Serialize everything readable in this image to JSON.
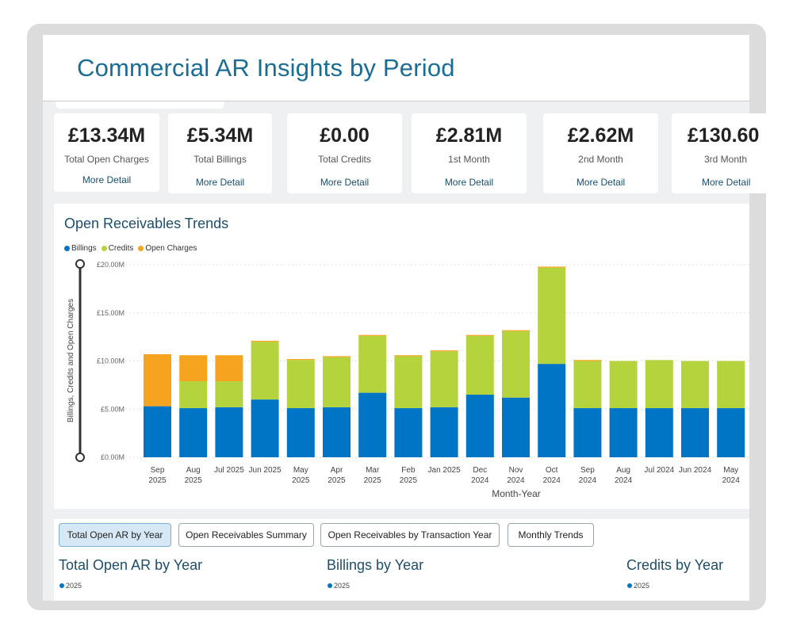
{
  "header": {
    "title": "Commercial AR Insights by Period"
  },
  "kpis": [
    {
      "value": "£13.34M",
      "label": "Total Open Charges",
      "more": "More Detail"
    },
    {
      "value": "£5.34M",
      "label": "Total Billings",
      "more": "More Detail"
    },
    {
      "value": "£0.00",
      "label": "Total Credits",
      "more": "More Detail"
    },
    {
      "value": "£2.81M",
      "label": "1st Month",
      "more": "More Detail"
    },
    {
      "value": "£2.62M",
      "label": "2nd Month",
      "more": "More Detail"
    },
    {
      "value": "£130.60",
      "label": "3rd Month",
      "more": "More Detail"
    }
  ],
  "chart": {
    "title": "Open Receivables Trends",
    "legend": [
      {
        "name": "Billings",
        "color": "#0074c5"
      },
      {
        "name": "Credits",
        "color": "#b5d33d"
      },
      {
        "name": "Open Charges",
        "color": "#f6a31f"
      }
    ]
  },
  "chart_data": {
    "type": "bar",
    "stacked": true,
    "title": "Open Receivables Trends",
    "xlabel": "Month-Year",
    "ylabel": "Billings, Credits and Open Charges",
    "ylim": [
      0,
      20
    ],
    "yticks": [
      "£0.00M",
      "£5.00M",
      "£10.00M",
      "£15.00M",
      "£20.00M"
    ],
    "categories": [
      "Sep 2025",
      "Aug 2025",
      "Jul 2025",
      "Jun 2025",
      "May 2025",
      "Apr 2025",
      "Mar 2025",
      "Feb 2025",
      "Jan 2025",
      "Dec 2024",
      "Nov 2024",
      "Oct 2024",
      "Sep 2024",
      "Aug 2024",
      "Jul 2024",
      "Jun 2024",
      "May 2024"
    ],
    "category_labels": [
      [
        "Sep",
        "2025"
      ],
      [
        "Aug",
        "2025"
      ],
      [
        "Jul 2025"
      ],
      [
        "Jun 2025"
      ],
      [
        "May",
        "2025"
      ],
      [
        "Apr",
        "2025"
      ],
      [
        "Mar",
        "2025"
      ],
      [
        "Feb",
        "2025"
      ],
      [
        "Jan 2025"
      ],
      [
        "Dec",
        "2024"
      ],
      [
        "Nov",
        "2024"
      ],
      [
        "Oct",
        "2024"
      ],
      [
        "Sep",
        "2024"
      ],
      [
        "Aug",
        "2024"
      ],
      [
        "Jul 2024"
      ],
      [
        "Jun 2024"
      ],
      [
        "May",
        "2024"
      ]
    ],
    "series": [
      {
        "name": "Billings",
        "color": "#0074c5",
        "values": [
          5.3,
          5.1,
          5.2,
          6.0,
          5.1,
          5.2,
          6.7,
          5.1,
          5.2,
          6.5,
          6.2,
          9.7,
          5.1,
          5.1,
          5.1,
          5.1,
          5.1
        ]
      },
      {
        "name": "Credits",
        "color": "#b5d33d",
        "values": [
          0,
          2.8,
          2.7,
          6.0,
          5.0,
          5.2,
          5.9,
          5.4,
          5.8,
          6.1,
          6.9,
          10.0,
          4.9,
          4.9,
          5.0,
          4.9,
          4.9
        ]
      },
      {
        "name": "Open Charges",
        "color": "#f6a31f",
        "values": [
          5.4,
          2.7,
          2.7,
          0.1,
          0.1,
          0.1,
          0.1,
          0.1,
          0.1,
          0.1,
          0.1,
          0.1,
          0.1,
          0,
          0,
          0,
          0
        ]
      }
    ],
    "grid": true,
    "legend_position": "top-left"
  },
  "tabs": [
    {
      "label": "Total Open AR by Year",
      "active": true
    },
    {
      "label": "Open Receivables Summary",
      "active": false
    },
    {
      "label": "Open Receivables by Transaction Year",
      "active": false
    },
    {
      "label": "Monthly Trends",
      "active": false
    }
  ],
  "bottom": [
    {
      "title": "Total Open AR by Year",
      "legend": "2025"
    },
    {
      "title": "Billings by Year",
      "legend": "2025"
    },
    {
      "title": "Credits by Year",
      "legend": "2025"
    }
  ]
}
